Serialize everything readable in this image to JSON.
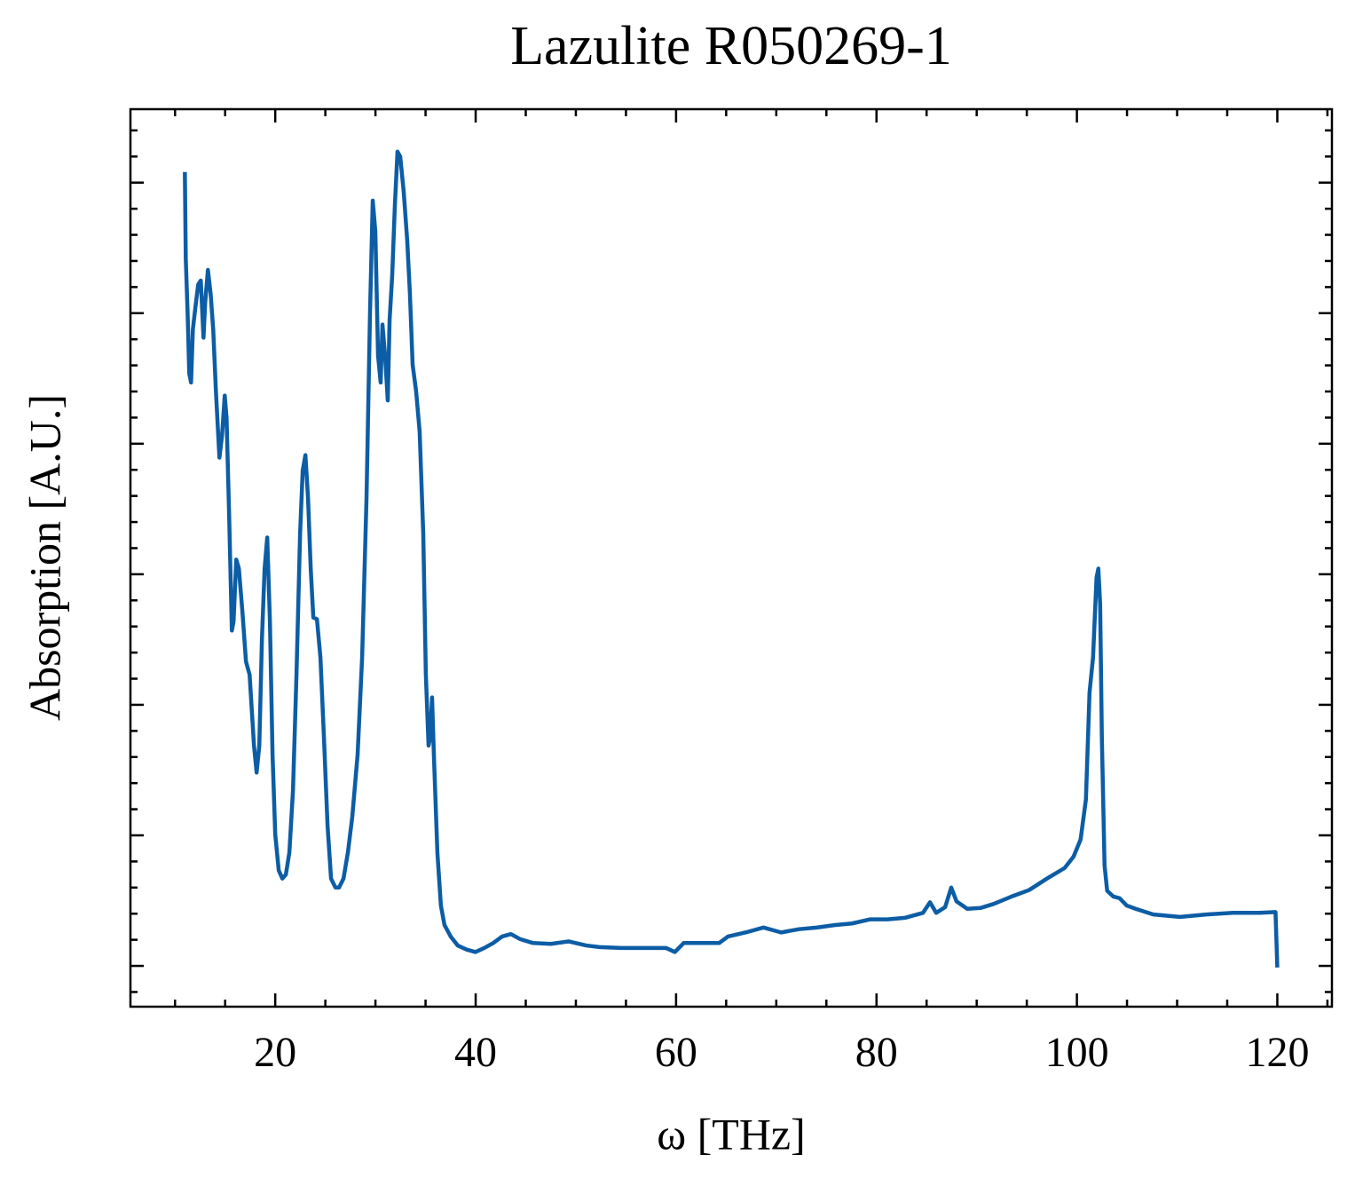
{
  "chart_data": {
    "type": "line",
    "title": "Lazulite R050269-1",
    "xlabel": "ω [THz]",
    "ylabel": "Absorption [A.U.]",
    "xlim": [
      5.55,
      125.45
    ],
    "ylim": [
      -0.05,
      1.05
    ],
    "xticks": [
      20,
      40,
      60,
      80,
      100,
      120
    ],
    "xminorticks": [
      10,
      15,
      25,
      30,
      35,
      45,
      50,
      55,
      65,
      70,
      75,
      85,
      90,
      95,
      105,
      110,
      115,
      125
    ],
    "yticks": [
      0,
      0.16,
      0.32,
      0.48,
      0.64,
      0.8,
      0.96
    ],
    "yminorticks": [
      -0.032,
      0.032,
      0.064,
      0.096,
      0.128,
      0.192,
      0.224,
      0.256,
      0.288,
      0.352,
      0.384,
      0.416,
      0.448,
      0.512,
      0.544,
      0.576,
      0.608,
      0.672,
      0.704,
      0.736,
      0.768,
      0.832,
      0.864,
      0.896,
      0.928,
      0.992,
      1.024
    ],
    "ytick_labels": false,
    "ticks_inside": true,
    "mirror_ticks": true,
    "color": "#0c5da5",
    "x": [
      10.98,
      11.07,
      11.25,
      11.42,
      11.6,
      11.78,
      12.04,
      12.31,
      12.57,
      12.84,
      13.01,
      13.28,
      13.55,
      13.81,
      14.08,
      14.43,
      14.69,
      14.96,
      15.14,
      15.4,
      15.67,
      15.84,
      16.11,
      16.37,
      16.73,
      17.08,
      17.44,
      17.88,
      18.14,
      18.41,
      18.67,
      18.94,
      19.2,
      19.47,
      19.73,
      20.0,
      20.35,
      20.71,
      21.06,
      21.41,
      21.77,
      22.12,
      22.48,
      22.74,
      23.01,
      23.27,
      23.54,
      23.8,
      24.16,
      24.51,
      24.86,
      25.22,
      25.57,
      26.01,
      26.37,
      26.81,
      27.25,
      27.69,
      28.22,
      28.67,
      29.11,
      29.46,
      29.73,
      29.99,
      30.26,
      30.52,
      30.7,
      30.96,
      31.23,
      31.41,
      31.67,
      31.94,
      32.2,
      32.47,
      32.82,
      33.17,
      33.44,
      33.71,
      34.06,
      34.41,
      34.77,
      35.03,
      35.3,
      35.47,
      35.65,
      35.83,
      36.18,
      36.53,
      36.89,
      37.51,
      38.21,
      39.1,
      39.98,
      40.87,
      41.75,
      42.64,
      43.52,
      44.4,
      45.73,
      47.5,
      49.27,
      51.04,
      52.36,
      54.57,
      57.22,
      58.99,
      59.88,
      60.76,
      62.53,
      64.3,
      65.18,
      66.95,
      68.72,
      70.49,
      72.26,
      74.03,
      75.79,
      77.56,
      79.33,
      81.1,
      82.87,
      84.64,
      85.34,
      85.96,
      86.85,
      87.46,
      87.99,
      89.06,
      90.38,
      91.71,
      93.48,
      95.24,
      97.01,
      98.78,
      99.67,
      100.37,
      100.9,
      101.26,
      101.61,
      101.96,
      102.14,
      102.32,
      102.49,
      102.76,
      103.02,
      103.64,
      104.26,
      104.97,
      105.86,
      107.62,
      110.28,
      112.93,
      115.58,
      118.23,
      119.82,
      120.0
    ],
    "values": [
      0.973,
      0.867,
      0.802,
      0.726,
      0.715,
      0.78,
      0.808,
      0.835,
      0.84,
      0.77,
      0.813,
      0.853,
      0.824,
      0.78,
      0.704,
      0.623,
      0.65,
      0.699,
      0.672,
      0.552,
      0.411,
      0.422,
      0.498,
      0.487,
      0.433,
      0.373,
      0.357,
      0.27,
      0.237,
      0.27,
      0.4,
      0.487,
      0.525,
      0.422,
      0.259,
      0.161,
      0.117,
      0.107,
      0.112,
      0.139,
      0.215,
      0.357,
      0.53,
      0.607,
      0.626,
      0.574,
      0.487,
      0.427,
      0.425,
      0.378,
      0.28,
      0.172,
      0.107,
      0.096,
      0.096,
      0.107,
      0.139,
      0.183,
      0.259,
      0.378,
      0.574,
      0.802,
      0.938,
      0.9,
      0.748,
      0.715,
      0.786,
      0.748,
      0.693,
      0.791,
      0.846,
      0.933,
      0.998,
      0.992,
      0.949,
      0.889,
      0.824,
      0.737,
      0.704,
      0.655,
      0.53,
      0.357,
      0.27,
      0.28,
      0.329,
      0.259,
      0.139,
      0.074,
      0.05,
      0.036,
      0.025,
      0.02,
      0.017,
      0.022,
      0.028,
      0.036,
      0.039,
      0.033,
      0.028,
      0.027,
      0.03,
      0.025,
      0.023,
      0.022,
      0.022,
      0.022,
      0.017,
      0.028,
      0.028,
      0.028,
      0.036,
      0.041,
      0.047,
      0.041,
      0.045,
      0.047,
      0.05,
      0.052,
      0.057,
      0.057,
      0.059,
      0.065,
      0.078,
      0.065,
      0.072,
      0.096,
      0.079,
      0.07,
      0.071,
      0.076,
      0.085,
      0.093,
      0.107,
      0.12,
      0.134,
      0.155,
      0.204,
      0.335,
      0.378,
      0.476,
      0.487,
      0.443,
      0.28,
      0.123,
      0.092,
      0.085,
      0.083,
      0.074,
      0.07,
      0.063,
      0.06,
      0.063,
      0.065,
      0.065,
      0.066,
      -0.002
    ]
  }
}
